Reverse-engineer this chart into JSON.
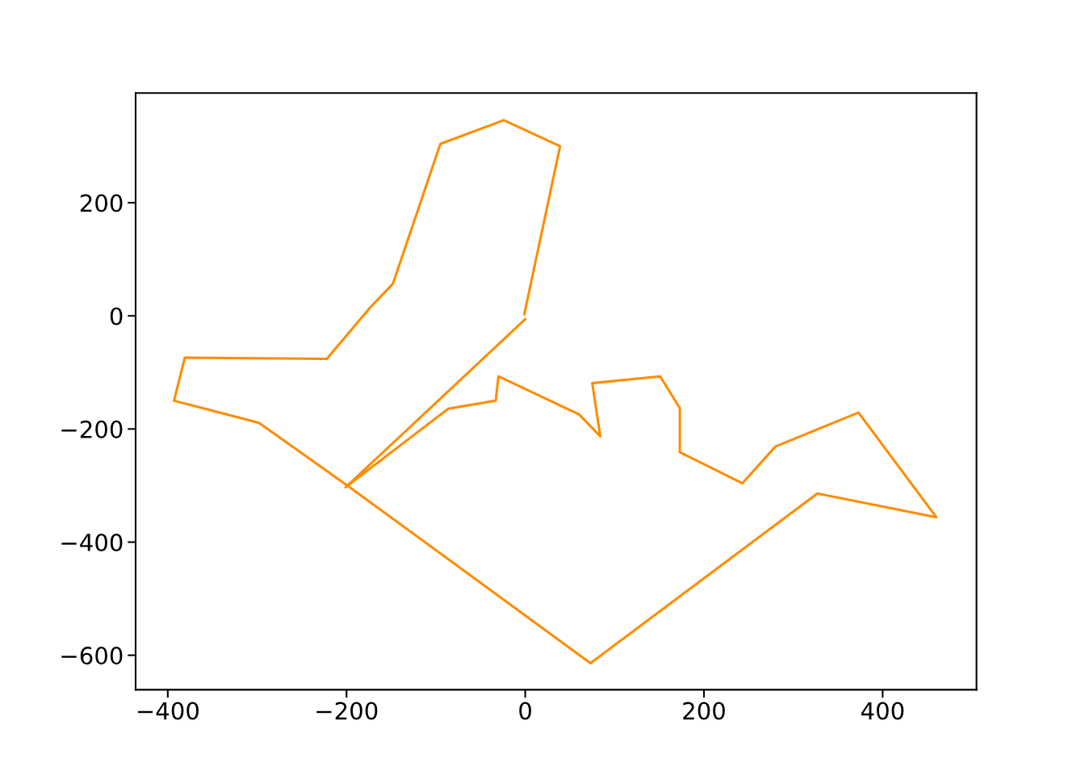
{
  "chart_data": {
    "type": "line",
    "series": [
      {
        "color": "#ff8c00",
        "x": [
          -1,
          39,
          -24,
          -95,
          -148,
          -174,
          -222,
          -381,
          -393,
          -298,
          -199,
          73,
          327,
          460,
          373,
          280,
          243,
          173,
          173,
          151,
          75,
          84,
          60,
          -30,
          -33,
          -86,
          -201,
          0
        ],
        "values": [
          3,
          300,
          346,
          304,
          57,
          14,
          -76,
          -74,
          -150,
          -189,
          -300,
          -614,
          -314,
          -356,
          -171,
          -231,
          -296,
          -241,
          -163,
          -107,
          -119,
          -213,
          -174,
          -107,
          -150,
          -164,
          -303,
          -6
        ]
      }
    ],
    "xlim": [
      -436,
      505
    ],
    "ylim": [
      -661,
      394
    ],
    "xticks": [
      {
        "value": -400,
        "label": "−400"
      },
      {
        "value": -200,
        "label": "−200"
      },
      0,
      200,
      400
    ],
    "yticks": [
      {
        "value": -600,
        "label": "−600"
      },
      {
        "value": -400,
        "label": "−400"
      },
      {
        "value": -200,
        "label": "−200"
      },
      0,
      200
    ],
    "grid": false,
    "legend": false,
    "marker": "none",
    "line_style": "solid"
  }
}
